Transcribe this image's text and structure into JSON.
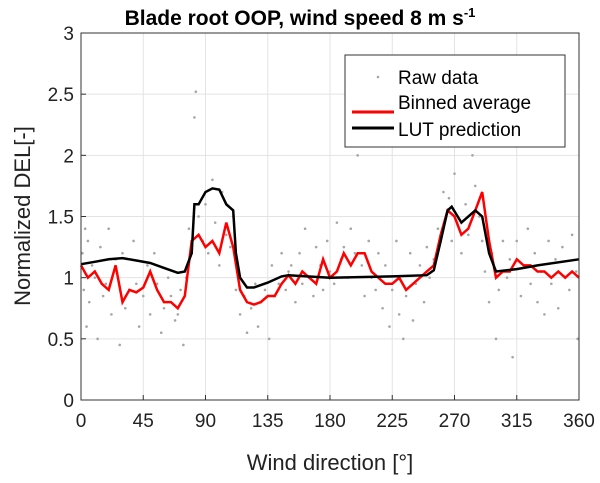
{
  "chart_data": {
    "type": "line",
    "title": "Blade root OOP, wind speed 8 m s",
    "title_superscript": "-1",
    "xlabel": "Wind direction [°]",
    "ylabel": "Normalized DEL[-]",
    "xlim": [
      0,
      360
    ],
    "ylim": [
      0,
      3
    ],
    "xticks": [
      "0",
      "45",
      "90",
      "135",
      "180",
      "225",
      "270",
      "315",
      "360"
    ],
    "yticks": [
      "0",
      "0.5",
      "1",
      "1.5",
      "2",
      "2.5",
      "3"
    ],
    "grid": true,
    "legend_position": "top-right",
    "colors": {
      "raw": "#a6a6a6",
      "binned": "#ff0000",
      "lut": "#000000"
    },
    "series": [
      {
        "name": "Raw data",
        "type": "scatter",
        "points": [
          [
            1,
            1.2
          ],
          [
            2,
            0.9
          ],
          [
            3,
            1.4
          ],
          [
            4,
            0.6
          ],
          [
            5,
            1.3
          ],
          [
            6,
            0.8
          ],
          [
            8,
            1.1
          ],
          [
            10,
            1.0
          ],
          [
            12,
            0.5
          ],
          [
            14,
            1.25
          ],
          [
            16,
            0.85
          ],
          [
            18,
            0.95
          ],
          [
            20,
            1.4
          ],
          [
            22,
            0.7
          ],
          [
            25,
            1.15
          ],
          [
            28,
            0.45
          ],
          [
            30,
            1.2
          ],
          [
            32,
            0.75
          ],
          [
            35,
            0.9
          ],
          [
            38,
            1.3
          ],
          [
            40,
            0.95
          ],
          [
            42,
            0.6
          ],
          [
            45,
            0.85
          ],
          [
            48,
            1.1
          ],
          [
            50,
            0.7
          ],
          [
            53,
            1.2
          ],
          [
            55,
            0.95
          ],
          [
            58,
            0.55
          ],
          [
            60,
            0.75
          ],
          [
            63,
            1.0
          ],
          [
            65,
            0.85
          ],
          [
            68,
            0.65
          ],
          [
            70,
            0.7
          ],
          [
            72,
            0.9
          ],
          [
            74,
            0.45
          ],
          [
            76,
            1.0
          ],
          [
            78,
            1.4
          ],
          [
            80,
            1.2
          ],
          [
            82,
            2.31
          ],
          [
            83,
            2.52
          ],
          [
            85,
            1.5
          ],
          [
            88,
            1.3
          ],
          [
            90,
            1.6
          ],
          [
            92,
            1.2
          ],
          [
            95,
            1.8
          ],
          [
            97,
            1.45
          ],
          [
            100,
            1.1
          ],
          [
            102,
            1.7
          ],
          [
            105,
            1.35
          ],
          [
            108,
            1.25
          ],
          [
            110,
            1.5
          ],
          [
            112,
            0.9
          ],
          [
            115,
            0.7
          ],
          [
            118,
            0.85
          ],
          [
            120,
            0.55
          ],
          [
            123,
            0.75
          ],
          [
            126,
            0.95
          ],
          [
            128,
            0.6
          ],
          [
            130,
            0.8
          ],
          [
            133,
            0.9
          ],
          [
            136,
            0.5
          ],
          [
            138,
            1.1
          ],
          [
            140,
            0.85
          ],
          [
            143,
            0.95
          ],
          [
            145,
            1.2
          ],
          [
            148,
            0.9
          ],
          [
            150,
            1.05
          ],
          [
            152,
            1.1
          ],
          [
            155,
            0.8
          ],
          [
            158,
            1.2
          ],
          [
            160,
            0.95
          ],
          [
            162,
            1.4
          ],
          [
            165,
            1.0
          ],
          [
            168,
            0.85
          ],
          [
            170,
            1.25
          ],
          [
            173,
            1.1
          ],
          [
            175,
            0.9
          ],
          [
            178,
            1.3
          ],
          [
            180,
            1.05
          ],
          [
            183,
            0.95
          ],
          [
            185,
            1.45
          ],
          [
            188,
            1.15
          ],
          [
            190,
            1.25
          ],
          [
            193,
            1.0
          ],
          [
            195,
            1.4
          ],
          [
            198,
            1.2
          ],
          [
            200,
            2.0
          ],
          [
            203,
            1.1
          ],
          [
            205,
            0.85
          ],
          [
            208,
            1.3
          ],
          [
            210,
            1.0
          ],
          [
            213,
            0.9
          ],
          [
            215,
            1.2
          ],
          [
            218,
            0.75
          ],
          [
            220,
            1.1
          ],
          [
            223,
            0.6
          ],
          [
            225,
            0.9
          ],
          [
            228,
            1.3
          ],
          [
            230,
            0.7
          ],
          [
            233,
            0.5
          ],
          [
            235,
            0.85
          ],
          [
            238,
            1.2
          ],
          [
            240,
            0.65
          ],
          [
            242,
            0.95
          ],
          [
            245,
            1.1
          ],
          [
            248,
            0.8
          ],
          [
            250,
            1.25
          ],
          [
            252,
            1.0
          ],
          [
            255,
            1.15
          ],
          [
            258,
            1.4
          ],
          [
            260,
            1.3
          ],
          [
            262,
            1.7
          ],
          [
            264,
            1.5
          ],
          [
            266,
            1.65
          ],
          [
            268,
            1.3
          ],
          [
            270,
            1.85
          ],
          [
            272,
            1.45
          ],
          [
            275,
            1.2
          ],
          [
            278,
            1.6
          ],
          [
            280,
            1.35
          ],
          [
            283,
            2.0
          ],
          [
            285,
            1.75
          ],
          [
            288,
            1.5
          ],
          [
            290,
            1.3
          ],
          [
            292,
            1.05
          ],
          [
            295,
            0.8
          ],
          [
            297,
            1.2
          ],
          [
            300,
            0.5
          ],
          [
            302,
            0.9
          ],
          [
            305,
            1.3
          ],
          [
            308,
            1.0
          ],
          [
            310,
            1.15
          ],
          [
            312,
            0.35
          ],
          [
            315,
            1.3
          ],
          [
            318,
            0.85
          ],
          [
            320,
            1.1
          ],
          [
            323,
            1.4
          ],
          [
            325,
            0.95
          ],
          [
            328,
            1.2
          ],
          [
            330,
            0.8
          ],
          [
            333,
            1.05
          ],
          [
            335,
            0.7
          ],
          [
            338,
            1.3
          ],
          [
            340,
            0.95
          ],
          [
            343,
            1.15
          ],
          [
            345,
            0.75
          ],
          [
            348,
            1.25
          ],
          [
            350,
            1.0
          ],
          [
            353,
            0.9
          ],
          [
            355,
            1.35
          ],
          [
            358,
            1.05
          ],
          [
            359,
            0.5
          ]
        ]
      },
      {
        "name": "Binned average",
        "type": "line",
        "x": [
          0,
          5,
          10,
          15,
          20,
          25,
          30,
          35,
          40,
          45,
          50,
          55,
          60,
          65,
          70,
          75,
          80,
          85,
          90,
          95,
          100,
          105,
          110,
          115,
          120,
          125,
          130,
          135,
          140,
          145,
          150,
          155,
          160,
          165,
          170,
          175,
          180,
          185,
          190,
          195,
          200,
          205,
          210,
          215,
          220,
          225,
          230,
          235,
          240,
          245,
          250,
          255,
          260,
          265,
          270,
          275,
          280,
          285,
          290,
          295,
          300,
          305,
          310,
          315,
          320,
          325,
          330,
          335,
          340,
          345,
          350,
          355,
          360
        ],
        "y": [
          1.1,
          1.0,
          1.05,
          0.95,
          0.9,
          1.1,
          0.8,
          0.9,
          0.88,
          0.92,
          1.05,
          0.9,
          0.8,
          0.8,
          0.75,
          0.85,
          1.3,
          1.35,
          1.25,
          1.3,
          1.2,
          1.45,
          1.25,
          0.9,
          0.8,
          0.78,
          0.8,
          0.85,
          0.85,
          0.95,
          1.02,
          0.95,
          1.05,
          1.0,
          0.95,
          1.15,
          1.0,
          1.05,
          1.2,
          1.1,
          1.2,
          1.2,
          1.05,
          1.0,
          0.95,
          0.95,
          1.0,
          0.9,
          0.95,
          1.0,
          1.05,
          1.1,
          1.35,
          1.55,
          1.5,
          1.35,
          1.4,
          1.55,
          1.7,
          1.3,
          1.0,
          1.05,
          1.05,
          1.15,
          1.1,
          1.1,
          1.05,
          1.05,
          1.0,
          1.05,
          1.0,
          1.05,
          1.0
        ]
      },
      {
        "name": "LUT prediction",
        "type": "line",
        "x": [
          0,
          10,
          20,
          30,
          40,
          50,
          60,
          70,
          75,
          80,
          82,
          85,
          90,
          95,
          100,
          105,
          110,
          112,
          115,
          120,
          125,
          135,
          145,
          150,
          180,
          225,
          250,
          255,
          260,
          265,
          268,
          275,
          285,
          290,
          295,
          300,
          315,
          330,
          360
        ],
        "y": [
          1.11,
          1.13,
          1.15,
          1.16,
          1.14,
          1.12,
          1.08,
          1.04,
          1.05,
          1.2,
          1.6,
          1.6,
          1.7,
          1.73,
          1.72,
          1.6,
          1.55,
          1.2,
          1.0,
          0.92,
          0.92,
          0.96,
          1.01,
          1.02,
          1.0,
          1.01,
          1.02,
          1.06,
          1.3,
          1.55,
          1.58,
          1.45,
          1.55,
          1.5,
          1.2,
          1.05,
          1.07,
          1.1,
          1.15
        ]
      }
    ]
  }
}
